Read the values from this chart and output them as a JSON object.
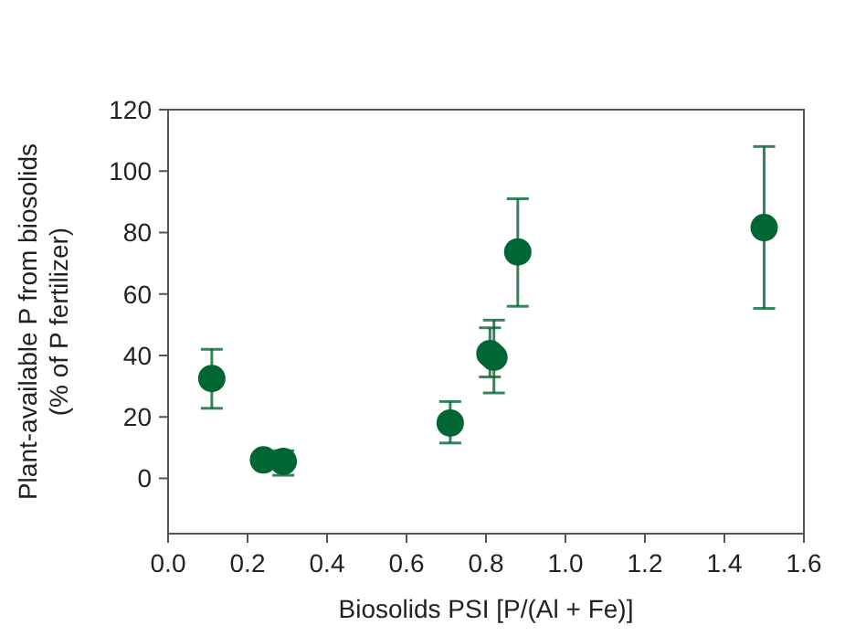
{
  "chart_data": {
    "type": "scatter",
    "xlabel": "Biosolids PSI [P/(Al + Fe)]",
    "ylabel": "Plant-available P from biosolids\n(% of P fertilizer)",
    "x": [
      0.11,
      0.24,
      0.29,
      0.71,
      0.81,
      0.82,
      0.88,
      1.5
    ],
    "series": [
      {
        "color": "#006633",
        "values": [
          32.5,
          6,
          5.5,
          18,
          40.6,
          39.4,
          73.7,
          81.6
        ],
        "errors": [
          [
            22.8,
            42
          ],
          null,
          [
            1,
            9
          ],
          [
            11.5,
            25
          ],
          [
            33,
            49
          ],
          [
            27.8,
            51.5
          ],
          [
            56,
            91
          ],
          [
            55.3,
            108
          ]
        ]
      }
    ],
    "xlim": [
      0,
      1.6
    ],
    "xticks": [
      {
        "value": 0,
        "label": "0.0"
      },
      {
        "value": 0.2,
        "label": "0.2"
      },
      {
        "value": 0.4,
        "label": "0.4"
      },
      {
        "value": 0.6,
        "label": "0.6"
      },
      {
        "value": 0.8,
        "label": "0.8"
      },
      {
        "value": 1,
        "label": "1.0"
      },
      {
        "value": 1.2,
        "label": "1.2"
      },
      {
        "value": 1.4,
        "label": "1.4"
      },
      {
        "value": 1.6,
        "label": "1.6"
      }
    ],
    "ylim": [
      -18,
      120
    ],
    "yticks": [
      0,
      20,
      40,
      60,
      80,
      100,
      120
    ],
    "marker": "circle",
    "grid": false
  }
}
